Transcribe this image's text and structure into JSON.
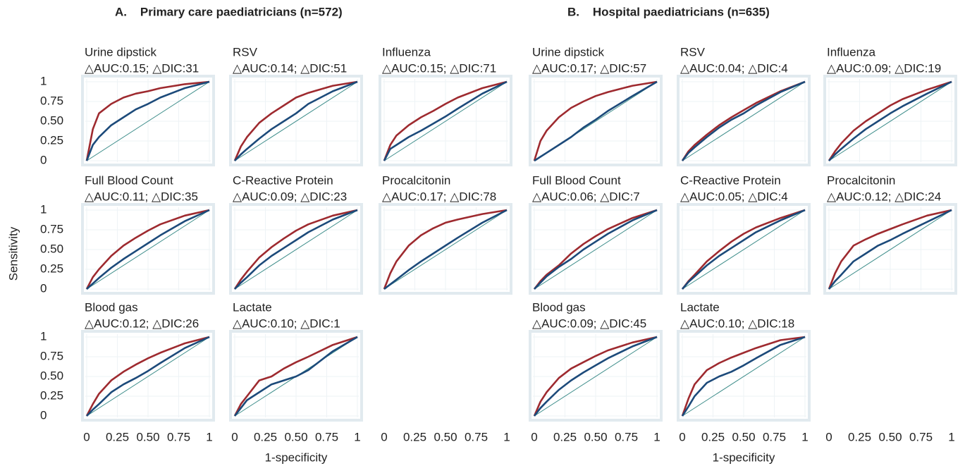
{
  "figure": {
    "titles": [
      "A.    Primary care paediatricians (n=572)",
      "B.    Hospital paediatricians (n=635)"
    ],
    "y_label": "Sensitivity",
    "x_labels": [
      "1-specificity",
      "1-specificity"
    ]
  },
  "chart_data": [
    {
      "type": "line",
      "title": "Urine dipstick",
      "subtitle": "△AUC:0.15; △DIC:31",
      "x": [
        0,
        0.05,
        0.1,
        0.2,
        0.3,
        0.4,
        0.5,
        0.6,
        0.8,
        1
      ],
      "xlim": [
        0,
        1
      ],
      "ylim": [
        0,
        1
      ],
      "xticks": [
        0,
        0.25,
        {
          "value": 0.5,
          "label": "0.50"
        },
        0.75,
        1
      ],
      "yticks": [
        0,
        0.25,
        {
          "value": 0.5,
          "label": "0.50"
        },
        0.75,
        1
      ],
      "series": [
        {
          "color": "#9e2a2f",
          "values": [
            0,
            0.4,
            0.6,
            0.72,
            0.8,
            0.85,
            0.88,
            0.92,
            0.97,
            1
          ]
        },
        {
          "color": "#1c4a7a",
          "values": [
            0,
            0.2,
            0.3,
            0.45,
            0.55,
            0.65,
            0.72,
            0.8,
            0.92,
            1
          ]
        }
      ]
    },
    {
      "type": "line",
      "title": "RSV",
      "subtitle": "△AUC:0.14; △DIC:51",
      "x": [
        0,
        0.05,
        0.1,
        0.2,
        0.3,
        0.4,
        0.5,
        0.6,
        0.8,
        1
      ],
      "xlim": [
        0,
        1
      ],
      "ylim": [
        0,
        1
      ],
      "xticks": [
        0,
        0.25,
        {
          "value": 0.5,
          "label": "0.50"
        },
        0.75,
        1
      ],
      "yticks": [
        0,
        0.25,
        {
          "value": 0.5,
          "label": "0.50"
        },
        0.75,
        1
      ],
      "series": [
        {
          "color": "#9e2a2f",
          "values": [
            0,
            0.18,
            0.3,
            0.48,
            0.6,
            0.7,
            0.8,
            0.86,
            0.95,
            1
          ]
        },
        {
          "color": "#1c4a7a",
          "values": [
            0,
            0.08,
            0.15,
            0.28,
            0.4,
            0.5,
            0.6,
            0.72,
            0.88,
            1
          ]
        }
      ]
    },
    {
      "type": "line",
      "title": "Influenza",
      "subtitle": "△AUC:0.15; △DIC:71",
      "x": [
        0,
        0.05,
        0.1,
        0.2,
        0.3,
        0.4,
        0.5,
        0.6,
        0.8,
        1
      ],
      "xlim": [
        0,
        1
      ],
      "ylim": [
        0,
        1
      ],
      "xticks": [
        0,
        0.25,
        {
          "value": 0.5,
          "label": "0.50"
        },
        0.75,
        1
      ],
      "yticks": [
        0,
        0.25,
        {
          "value": 0.5,
          "label": "0.50"
        },
        0.75,
        1
      ],
      "series": [
        {
          "color": "#9e2a2f",
          "values": [
            0,
            0.2,
            0.32,
            0.45,
            0.55,
            0.63,
            0.72,
            0.8,
            0.92,
            1
          ]
        },
        {
          "color": "#1c4a7a",
          "values": [
            0,
            0.15,
            0.2,
            0.3,
            0.38,
            0.47,
            0.56,
            0.66,
            0.85,
            1
          ]
        }
      ]
    },
    {
      "type": "line",
      "title": "Full Blood Count",
      "subtitle": "△AUC:0.11; △DIC:35",
      "x": [
        0,
        0.05,
        0.1,
        0.2,
        0.3,
        0.4,
        0.5,
        0.6,
        0.8,
        1
      ],
      "xlim": [
        0,
        1
      ],
      "ylim": [
        0,
        1
      ],
      "xticks": [
        0,
        0.25,
        {
          "value": 0.5,
          "label": "0.50"
        },
        0.75,
        1
      ],
      "yticks": [
        0,
        0.25,
        {
          "value": 0.5,
          "label": "0.50"
        },
        0.75,
        1
      ],
      "series": [
        {
          "color": "#9e2a2f",
          "values": [
            0,
            0.15,
            0.25,
            0.42,
            0.55,
            0.65,
            0.74,
            0.82,
            0.93,
            1
          ]
        },
        {
          "color": "#1c4a7a",
          "values": [
            0,
            0.07,
            0.14,
            0.27,
            0.38,
            0.48,
            0.58,
            0.68,
            0.86,
            1
          ]
        }
      ]
    },
    {
      "type": "line",
      "title": "C-Reactive Protein",
      "subtitle": "△AUC:0.09; △DIC:23",
      "x": [
        0,
        0.05,
        0.1,
        0.2,
        0.3,
        0.4,
        0.5,
        0.6,
        0.8,
        1
      ],
      "xlim": [
        0,
        1
      ],
      "ylim": [
        0,
        1
      ],
      "xticks": [
        0,
        0.25,
        {
          "value": 0.5,
          "label": "0.50"
        },
        0.75,
        1
      ],
      "yticks": [
        0,
        0.25,
        {
          "value": 0.5,
          "label": "0.50"
        },
        0.75,
        1
      ],
      "series": [
        {
          "color": "#9e2a2f",
          "values": [
            0,
            0.12,
            0.22,
            0.4,
            0.53,
            0.64,
            0.74,
            0.82,
            0.93,
            1
          ]
        },
        {
          "color": "#1c4a7a",
          "values": [
            0,
            0.08,
            0.15,
            0.3,
            0.42,
            0.52,
            0.62,
            0.72,
            0.88,
            1
          ]
        }
      ]
    },
    {
      "type": "line",
      "title": "Procalcitonin",
      "subtitle": "△AUC:0.17; △DIC:78",
      "x": [
        0,
        0.05,
        0.1,
        0.2,
        0.3,
        0.4,
        0.5,
        0.6,
        0.8,
        1
      ],
      "xlim": [
        0,
        1
      ],
      "ylim": [
        0,
        1
      ],
      "xticks": [
        0,
        0.25,
        {
          "value": 0.5,
          "label": "0.50"
        },
        0.75,
        1
      ],
      "yticks": [
        0,
        0.25,
        {
          "value": 0.5,
          "label": "0.50"
        },
        0.75,
        1
      ],
      "series": [
        {
          "color": "#9e2a2f",
          "values": [
            0,
            0.2,
            0.35,
            0.55,
            0.68,
            0.77,
            0.84,
            0.88,
            0.95,
            1
          ]
        },
        {
          "color": "#1c4a7a",
          "values": [
            0,
            0.06,
            0.12,
            0.24,
            0.35,
            0.45,
            0.55,
            0.65,
            0.84,
            1
          ]
        }
      ]
    },
    {
      "type": "line",
      "title": "Blood gas",
      "subtitle": "△AUC:0.12; △DIC:26",
      "x": [
        0,
        0.05,
        0.1,
        0.2,
        0.3,
        0.4,
        0.5,
        0.6,
        0.8,
        1
      ],
      "xlim": [
        0,
        1
      ],
      "ylim": [
        0,
        1
      ],
      "xticks": [
        0,
        0.25,
        {
          "value": 0.5,
          "label": "0.50"
        },
        0.75,
        1
      ],
      "yticks": [
        0,
        0.25,
        {
          "value": 0.5,
          "label": "0.50"
        },
        0.75,
        1
      ],
      "series": [
        {
          "color": "#9e2a2f",
          "values": [
            0,
            0.15,
            0.28,
            0.45,
            0.56,
            0.65,
            0.73,
            0.8,
            0.92,
            1
          ]
        },
        {
          "color": "#1c4a7a",
          "values": [
            0,
            0.08,
            0.15,
            0.3,
            0.4,
            0.48,
            0.57,
            0.67,
            0.86,
            1
          ]
        }
      ]
    },
    {
      "type": "line",
      "title": "Lactate",
      "subtitle": "△AUC:0.10; △DIC:1",
      "x": [
        0,
        0.05,
        0.1,
        0.2,
        0.3,
        0.4,
        0.5,
        0.6,
        0.8,
        1
      ],
      "xlim": [
        0,
        1
      ],
      "ylim": [
        0,
        1
      ],
      "xticks": [
        0,
        0.25,
        {
          "value": 0.5,
          "label": "0.50"
        },
        0.75,
        1
      ],
      "yticks": [
        0,
        0.25,
        {
          "value": 0.5,
          "label": "0.50"
        },
        0.75,
        1
      ],
      "series": [
        {
          "color": "#9e2a2f",
          "values": [
            0,
            0.15,
            0.25,
            0.45,
            0.5,
            0.6,
            0.68,
            0.75,
            0.9,
            1
          ]
        },
        {
          "color": "#1c4a7a",
          "values": [
            0,
            0.1,
            0.2,
            0.3,
            0.4,
            0.45,
            0.5,
            0.58,
            0.82,
            1
          ]
        }
      ]
    },
    {
      "type": "line",
      "title": "Urine dipstick",
      "subtitle": "△AUC:0.17; △DIC:57",
      "x": [
        0,
        0.05,
        0.1,
        0.2,
        0.3,
        0.4,
        0.5,
        0.6,
        0.8,
        1
      ],
      "xlim": [
        0,
        1
      ],
      "ylim": [
        0,
        1
      ],
      "xticks": [
        0,
        0.25,
        {
          "value": 0.5,
          "label": "0.50"
        },
        0.75,
        1
      ],
      "yticks": [
        0,
        0.25,
        {
          "value": 0.5,
          "label": "0.50"
        },
        0.75,
        1
      ],
      "series": [
        {
          "color": "#9e2a2f",
          "values": [
            0,
            0.25,
            0.38,
            0.55,
            0.67,
            0.75,
            0.82,
            0.87,
            0.95,
            1
          ]
        },
        {
          "color": "#1c4a7a",
          "values": [
            0,
            0.05,
            0.1,
            0.2,
            0.3,
            0.42,
            0.52,
            0.63,
            0.82,
            1
          ]
        }
      ]
    },
    {
      "type": "line",
      "title": "RSV",
      "subtitle": "△AUC:0.04; △DIC:4",
      "x": [
        0,
        0.05,
        0.1,
        0.2,
        0.3,
        0.4,
        0.5,
        0.6,
        0.8,
        1
      ],
      "xlim": [
        0,
        1
      ],
      "ylim": [
        0,
        1
      ],
      "xticks": [
        0,
        0.25,
        {
          "value": 0.5,
          "label": "0.50"
        },
        0.75,
        1
      ],
      "yticks": [
        0,
        0.25,
        {
          "value": 0.5,
          "label": "0.50"
        },
        0.75,
        1
      ],
      "series": [
        {
          "color": "#9e2a2f",
          "values": [
            0,
            0.12,
            0.2,
            0.33,
            0.45,
            0.55,
            0.64,
            0.73,
            0.88,
            1
          ]
        },
        {
          "color": "#1c4a7a",
          "values": [
            0,
            0.1,
            0.17,
            0.3,
            0.42,
            0.52,
            0.6,
            0.7,
            0.87,
            1
          ]
        }
      ]
    },
    {
      "type": "line",
      "title": "Influenza",
      "subtitle": "△AUC:0.09; △DIC:19",
      "x": [
        0,
        0.05,
        0.1,
        0.2,
        0.3,
        0.4,
        0.5,
        0.6,
        0.8,
        1
      ],
      "xlim": [
        0,
        1
      ],
      "ylim": [
        0,
        1
      ],
      "xticks": [
        0,
        0.25,
        {
          "value": 0.5,
          "label": "0.50"
        },
        0.75,
        1
      ],
      "yticks": [
        0,
        0.25,
        {
          "value": 0.5,
          "label": "0.50"
        },
        0.75,
        1
      ],
      "series": [
        {
          "color": "#9e2a2f",
          "values": [
            0,
            0.12,
            0.22,
            0.38,
            0.5,
            0.6,
            0.7,
            0.78,
            0.9,
            1
          ]
        },
        {
          "color": "#1c4a7a",
          "values": [
            0,
            0.08,
            0.15,
            0.28,
            0.4,
            0.5,
            0.6,
            0.69,
            0.85,
            1
          ]
        }
      ]
    },
    {
      "type": "line",
      "title": "Full Blood Count",
      "subtitle": "△AUC:0.06; △DIC:7",
      "x": [
        0,
        0.05,
        0.1,
        0.2,
        0.3,
        0.4,
        0.5,
        0.6,
        0.8,
        1
      ],
      "xlim": [
        0,
        1
      ],
      "ylim": [
        0,
        1
      ],
      "xticks": [
        0,
        0.25,
        {
          "value": 0.5,
          "label": "0.50"
        },
        0.75,
        1
      ],
      "yticks": [
        0,
        0.25,
        {
          "value": 0.5,
          "label": "0.50"
        },
        0.75,
        1
      ],
      "series": [
        {
          "color": "#9e2a2f",
          "values": [
            0,
            0.1,
            0.18,
            0.3,
            0.45,
            0.57,
            0.67,
            0.76,
            0.9,
            1
          ]
        },
        {
          "color": "#1c4a7a",
          "values": [
            0,
            0.08,
            0.16,
            0.28,
            0.38,
            0.5,
            0.6,
            0.7,
            0.87,
            1
          ]
        }
      ]
    },
    {
      "type": "line",
      "title": "C-Reactive Protein",
      "subtitle": "△AUC:0.05; △DIC:4",
      "x": [
        0,
        0.05,
        0.1,
        0.2,
        0.3,
        0.4,
        0.5,
        0.6,
        0.8,
        1
      ],
      "xlim": [
        0,
        1
      ],
      "ylim": [
        0,
        1
      ],
      "xticks": [
        0,
        0.25,
        {
          "value": 0.5,
          "label": "0.50"
        },
        0.75,
        1
      ],
      "yticks": [
        0,
        0.25,
        {
          "value": 0.5,
          "label": "0.50"
        },
        0.75,
        1
      ],
      "series": [
        {
          "color": "#9e2a2f",
          "values": [
            0,
            0.1,
            0.18,
            0.35,
            0.48,
            0.6,
            0.7,
            0.78,
            0.9,
            1
          ]
        },
        {
          "color": "#1c4a7a",
          "values": [
            0,
            0.09,
            0.16,
            0.3,
            0.42,
            0.52,
            0.62,
            0.72,
            0.87,
            1
          ]
        }
      ]
    },
    {
      "type": "line",
      "title": "Procalcitonin",
      "subtitle": "△AUC:0.12; △DIC:24",
      "x": [
        0,
        0.05,
        0.1,
        0.2,
        0.3,
        0.4,
        0.5,
        0.6,
        0.8,
        1
      ],
      "xlim": [
        0,
        1
      ],
      "ylim": [
        0,
        1
      ],
      "xticks": [
        0,
        0.25,
        {
          "value": 0.5,
          "label": "0.50"
        },
        0.75,
        1
      ],
      "yticks": [
        0,
        0.25,
        {
          "value": 0.5,
          "label": "0.50"
        },
        0.75,
        1
      ],
      "series": [
        {
          "color": "#9e2a2f",
          "values": [
            0,
            0.2,
            0.35,
            0.55,
            0.63,
            0.7,
            0.76,
            0.82,
            0.93,
            1
          ]
        },
        {
          "color": "#1c4a7a",
          "values": [
            0,
            0.1,
            0.18,
            0.35,
            0.45,
            0.55,
            0.62,
            0.7,
            0.85,
            1
          ]
        }
      ]
    },
    {
      "type": "line",
      "title": "Blood gas",
      "subtitle": "△AUC:0.09; △DIC:45",
      "x": [
        0,
        0.05,
        0.1,
        0.2,
        0.3,
        0.4,
        0.5,
        0.6,
        0.8,
        1
      ],
      "xlim": [
        0,
        1
      ],
      "ylim": [
        0,
        1
      ],
      "xticks": [
        0,
        0.25,
        {
          "value": 0.5,
          "label": "0.50"
        },
        0.75,
        1
      ],
      "yticks": [
        0,
        0.25,
        {
          "value": 0.5,
          "label": "0.50"
        },
        0.75,
        1
      ],
      "series": [
        {
          "color": "#9e2a2f",
          "values": [
            0,
            0.18,
            0.3,
            0.48,
            0.6,
            0.68,
            0.76,
            0.83,
            0.93,
            1
          ]
        },
        {
          "color": "#1c4a7a",
          "values": [
            0,
            0.1,
            0.18,
            0.33,
            0.45,
            0.55,
            0.64,
            0.73,
            0.88,
            1
          ]
        }
      ]
    },
    {
      "type": "line",
      "title": "Lactate",
      "subtitle": "△AUC:0.10; △DIC:18",
      "x": [
        0,
        0.05,
        0.1,
        0.2,
        0.3,
        0.4,
        0.5,
        0.6,
        0.8,
        1
      ],
      "xlim": [
        0,
        1
      ],
      "ylim": [
        0,
        1
      ],
      "xticks": [
        0,
        0.25,
        {
          "value": 0.5,
          "label": "0.50"
        },
        0.75,
        1
      ],
      "yticks": [
        0,
        0.25,
        {
          "value": 0.5,
          "label": "0.50"
        },
        0.75,
        1
      ],
      "series": [
        {
          "color": "#9e2a2f",
          "values": [
            0,
            0.22,
            0.4,
            0.58,
            0.67,
            0.74,
            0.8,
            0.86,
            0.96,
            1
          ]
        },
        {
          "color": "#1c4a7a",
          "values": [
            0,
            0.12,
            0.25,
            0.42,
            0.5,
            0.56,
            0.64,
            0.73,
            0.9,
            1
          ]
        }
      ]
    }
  ]
}
